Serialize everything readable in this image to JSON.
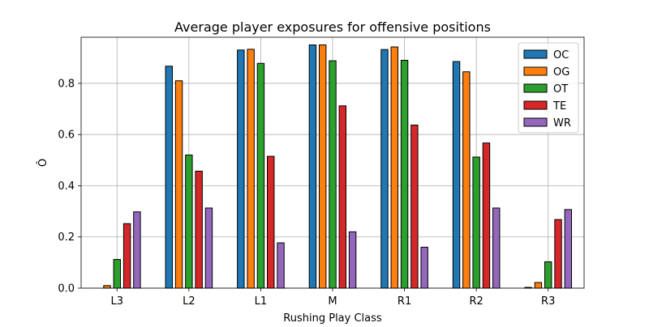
{
  "chart_data": {
    "type": "bar",
    "title": "Average player exposures for offensive positions",
    "xlabel": "Rushing Play Class",
    "ylabel": "Ô",
    "categories": [
      "L3",
      "L2",
      "L1",
      "M",
      "R1",
      "R2",
      "R3"
    ],
    "ylim": [
      0,
      0.98
    ],
    "yticks": [
      "0.0",
      "0.2",
      "0.4",
      "0.6",
      "0.8"
    ],
    "grid": true,
    "legend_position": "top-right",
    "series": [
      {
        "name": "OC",
        "color": "#1f77b4",
        "values": [
          0.0,
          0.867,
          0.93,
          0.95,
          0.932,
          0.885,
          0.003
        ]
      },
      {
        "name": "OG",
        "color": "#ff7f0e",
        "values": [
          0.01,
          0.81,
          0.933,
          0.95,
          0.942,
          0.845,
          0.022
        ]
      },
      {
        "name": "OT",
        "color": "#2ca02c",
        "values": [
          0.112,
          0.52,
          0.878,
          0.888,
          0.89,
          0.512,
          0.103
        ]
      },
      {
        "name": "TE",
        "color": "#d62728",
        "values": [
          0.252,
          0.457,
          0.515,
          0.712,
          0.637,
          0.567,
          0.268
        ]
      },
      {
        "name": "WR",
        "color": "#9467bd",
        "values": [
          0.298,
          0.313,
          0.177,
          0.22,
          0.16,
          0.313,
          0.307
        ]
      }
    ]
  }
}
